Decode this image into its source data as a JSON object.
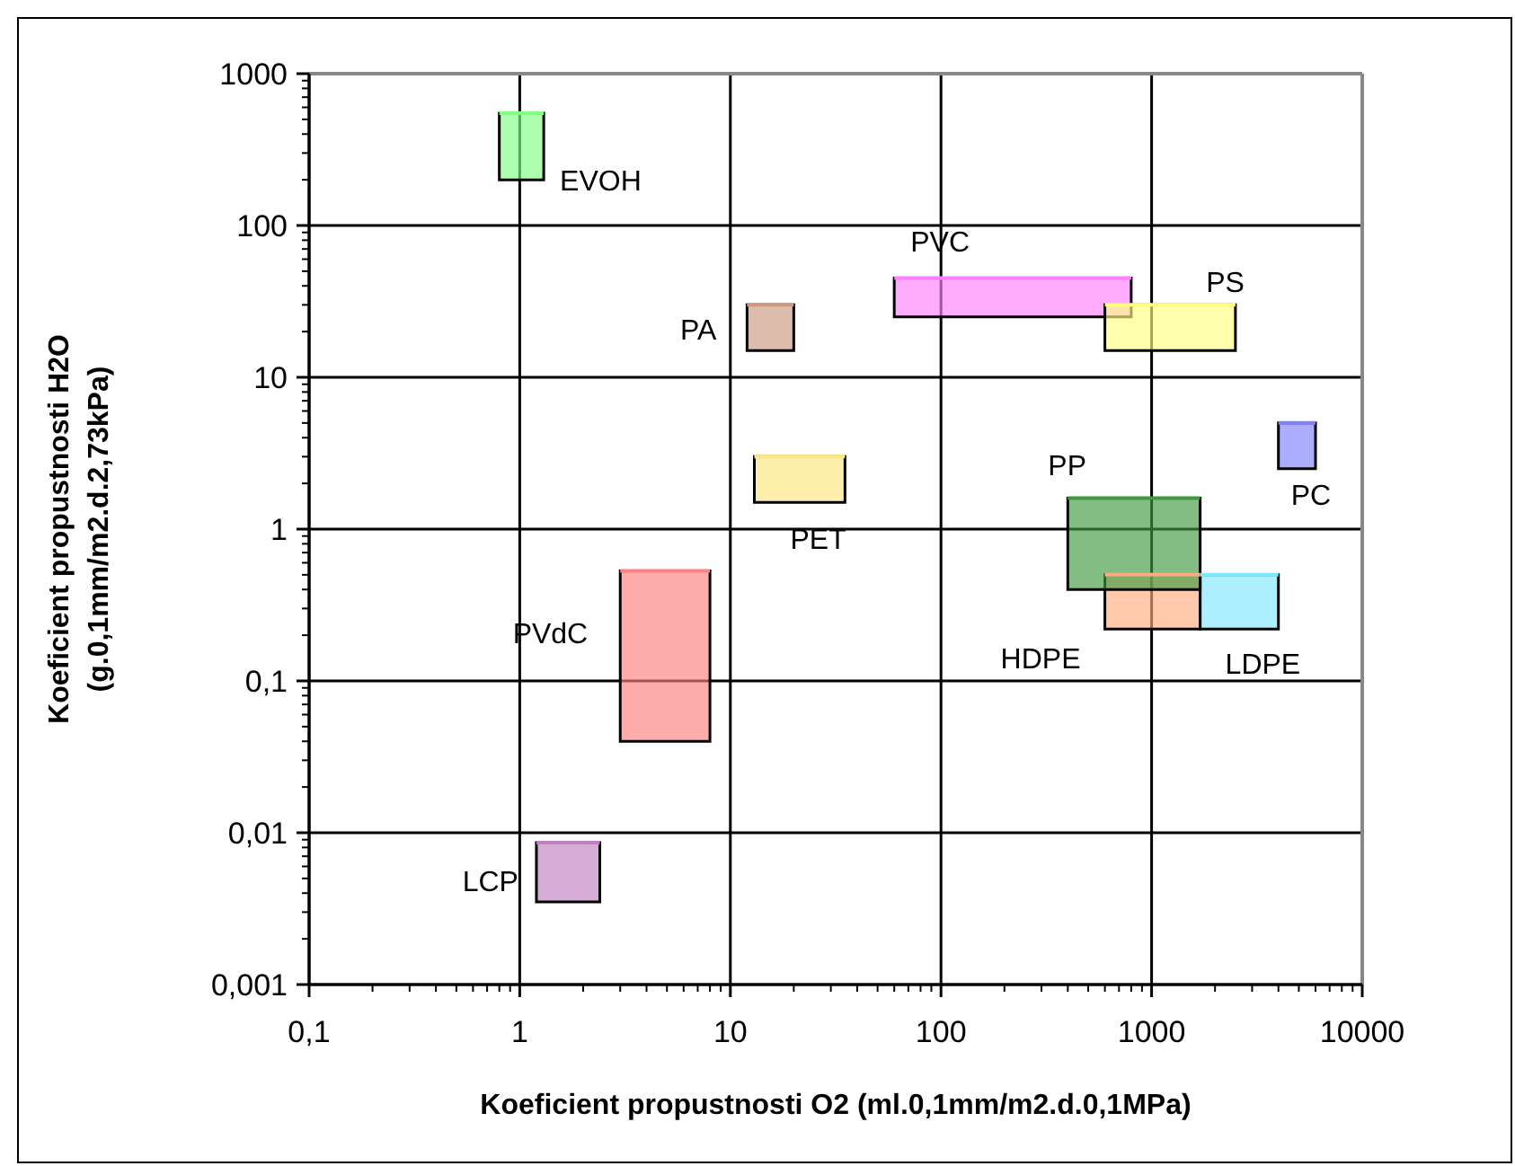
{
  "chart_data": {
    "type": "line",
    "xlabel": "Koeficient propustnosti O2 (ml.0,1mm/m2.d.0,1MPa)",
    "ylabel": "Koeficient propustnosti H2O\n(g.0,1mm/m2.d.2,73kPa)",
    "log": "xy",
    "grid": true,
    "marker": "none",
    "xlim": [
      0.1,
      10000
    ],
    "xticks": [
      {
        "value": 0.1,
        "label": "0,1"
      },
      1,
      10,
      100,
      1000,
      10000
    ],
    "ylim": [
      0.001,
      1000
    ],
    "yticks": [
      {
        "value": 0.001,
        "label": "0,001"
      },
      {
        "value": 0.01,
        "label": "0,01"
      },
      {
        "value": 0.1,
        "label": "0,1"
      },
      1,
      10,
      100,
      1000
    ],
    "series": [
      {
        "name": "EVOH",
        "color": "#80ff80",
        "x": [
          0.8,
          1.3
        ],
        "values": [
          550,
          550
        ],
        "lower": [
          200,
          200
        ],
        "upper": [
          550,
          550
        ]
      },
      {
        "name": "PA",
        "color": "#cc9980",
        "x": [
          12,
          20
        ],
        "values": [
          30,
          30
        ],
        "lower": [
          15,
          15
        ],
        "upper": [
          30,
          30
        ]
      },
      {
        "name": "PVC",
        "color": "#ff80ff",
        "x": [
          60,
          800
        ],
        "values": [
          45,
          45
        ],
        "lower": [
          25,
          25
        ],
        "upper": [
          45,
          45
        ]
      },
      {
        "name": "PS",
        "color": "#ffff80",
        "x": [
          600,
          2500
        ],
        "values": [
          30,
          30
        ],
        "lower": [
          15,
          15
        ],
        "upper": [
          30,
          30
        ]
      },
      {
        "name": "PET",
        "color": "#ffe680",
        "x": [
          13,
          35
        ],
        "values": [
          3,
          3
        ],
        "lower": [
          1.5,
          1.5
        ],
        "upper": [
          3,
          3
        ]
      },
      {
        "name": "PC",
        "color": "#8080ff",
        "x": [
          4000,
          6000
        ],
        "values": [
          5,
          5
        ],
        "lower": [
          2.5,
          2.5
        ],
        "upper": [
          5,
          5
        ]
      },
      {
        "name": "HDPE",
        "color": "#ffad80",
        "x": [
          600,
          1700
        ],
        "values": [
          0.5,
          0.5
        ],
        "lower": [
          0.22,
          0.22
        ],
        "upper": [
          0.5,
          0.5
        ]
      },
      {
        "name": "LDPE",
        "color": "#80e6ff",
        "x": [
          1700,
          4000
        ],
        "values": [
          0.5,
          0.5
        ],
        "lower": [
          0.22,
          0.22
        ],
        "upper": [
          0.5,
          0.5
        ]
      },
      {
        "name": "PP",
        "color": "#409940",
        "x": [
          400,
          1700
        ],
        "values": [
          1.6,
          1.6
        ],
        "lower": [
          0.4,
          0.4
        ],
        "upper": [
          1.6,
          1.6
        ]
      },
      {
        "name": "PVdC",
        "color": "#ff8080",
        "x": [
          3,
          8
        ],
        "values": [
          0.53,
          0.53
        ],
        "lower": [
          0.04,
          0.04
        ],
        "upper": [
          0.53,
          0.53
        ]
      },
      {
        "name": "LCP",
        "color": "#c080c0",
        "x": [
          1.2,
          2.4
        ],
        "values": [
          0.0086,
          0.0086
        ],
        "lower": [
          0.0035,
          0.0035
        ],
        "upper": [
          0.0086,
          0.0086
        ]
      }
    ]
  }
}
